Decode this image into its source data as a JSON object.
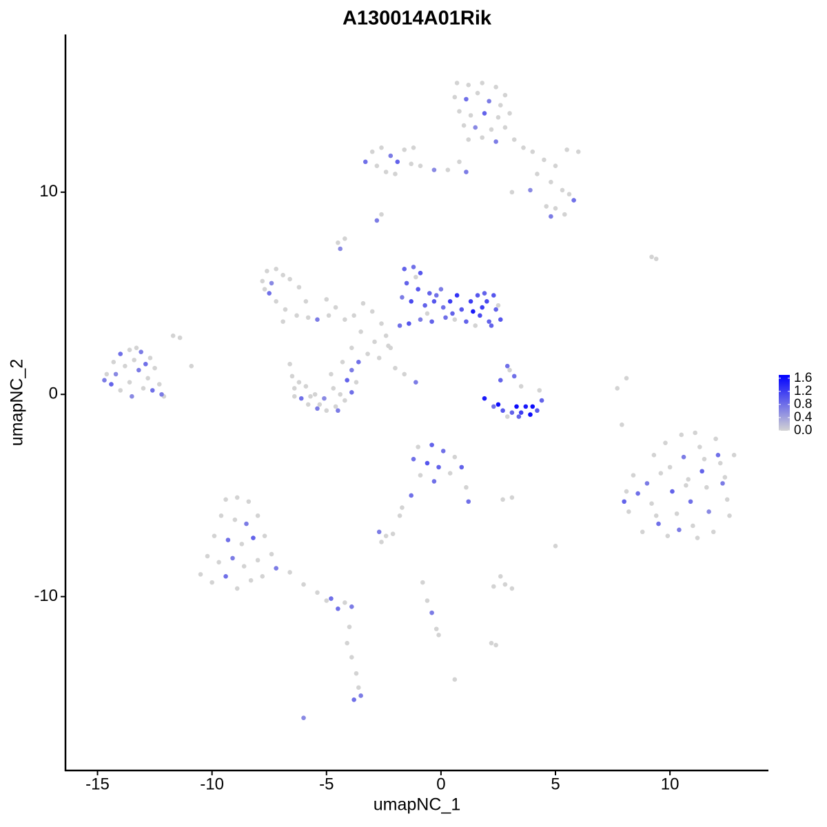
{
  "chart_data": {
    "type": "scatter",
    "title": "A130014A01Rik",
    "x_label": "umapNC_1",
    "y_label": "umapNC_2",
    "xlim": [
      -16.4,
      14.3
    ],
    "ylim": [
      -18.6,
      17.8
    ],
    "xticks": [
      -15,
      -10,
      -5,
      0,
      5,
      10
    ],
    "yticks": [
      -10,
      0,
      10
    ],
    "color_scale": {
      "low": "#d3d3d3",
      "high": "#0000ff",
      "lim": [
        0,
        1.7
      ],
      "ticks": [
        {
          "value": 0,
          "label": "0.0"
        },
        {
          "value": 0.4,
          "label": "0.4"
        },
        {
          "value": 0.8,
          "label": "0.8"
        },
        {
          "value": 1.2,
          "label": "1.2"
        },
        {
          "value": 1.6,
          "label": "1.6"
        }
      ]
    },
    "x": [
      0.7,
      1.2,
      1.8,
      2.4,
      2.8,
      0.6,
      1.1,
      1.6,
      2.1,
      2.6,
      0.8,
      1.3,
      1.9,
      2.5,
      3.0,
      1.0,
      1.5,
      2.2,
      2.8,
      1.2,
      1.8,
      2.4,
      3.2,
      3.6,
      4.0,
      4.5,
      5.0,
      5.5,
      4.2,
      3.9,
      4.8,
      5.3,
      5.8,
      5.6,
      4.6,
      5.0,
      4.8,
      5.4,
      3.1,
      6.0,
      -3.3,
      -3.0,
      -2.6,
      -2.2,
      -2.8,
      -2.4,
      -1.9,
      -1.6,
      -1.3,
      -0.9,
      -0.3,
      0.3,
      0.8,
      1.1,
      -2.0,
      -1.2,
      -2.8,
      -2.6,
      -4.5,
      -4.2,
      -4.4,
      -14.6,
      -14.3,
      -14.0,
      -13.6,
      -13.1,
      -12.7,
      -14.4,
      -14.0,
      -13.6,
      -13.2,
      -12.8,
      -12.5,
      -13.8,
      -13.4,
      -14.2,
      -13.0,
      -12.6,
      -12.3,
      -12.1,
      -13.5,
      -14.7,
      -13.3,
      -12.2,
      -11.4,
      -10.9,
      -12.9,
      -7.8,
      -7.6,
      -7.2,
      -6.9,
      -7.5,
      -7.2,
      -6.8,
      -6.3,
      -5.8,
      -5.4,
      -7.7,
      -6.6,
      -6.2,
      -5.9,
      -6.9,
      -4.9,
      -4.6,
      -4.2,
      -7.4,
      -5.0,
      -3.8,
      -3.4,
      -3.0,
      -2.6,
      -2.9,
      -2.4,
      -2.2,
      -3.5,
      -3.9,
      -2.7,
      -2.0,
      -1.6,
      -1.1,
      -3.2,
      -2.3,
      -6.5,
      -6.4,
      -6.1,
      -5.8,
      -5.4,
      -5.0,
      -4.6,
      -4.2,
      -3.9,
      -3.7,
      -3.9,
      -4.3,
      -6.6,
      -5.9,
      -5.5,
      -5.1,
      -4.7,
      -4.4,
      -6.2,
      -5.3,
      -4.1,
      -3.6,
      -4.8,
      -5.7,
      -4.5,
      -6.4,
      -1.6,
      -1.2,
      -0.9,
      -1.5,
      -1.0,
      -0.5,
      -1.7,
      -1.3,
      -0.7,
      -0.3,
      0.1,
      0.5,
      0.9,
      1.3,
      1.6,
      2.0,
      2.4,
      2.6,
      2.1,
      1.7,
      1.4,
      1.1,
      0.6,
      0.2,
      -0.4,
      -0.9,
      -1.4,
      -1.8,
      -0.6,
      0.4,
      1.9,
      2.3,
      2.5,
      0.0,
      -1.1,
      -0.2,
      1.5,
      2.2,
      0.7,
      1.8,
      1.9,
      2.3,
      2.7,
      3.1,
      3.5,
      3.9,
      4.2,
      4.4,
      4.3,
      2.5,
      3.3,
      3.7,
      4.0,
      2.9,
      3.4,
      2.6,
      3.0,
      3.2,
      3.5,
      2.9,
      8.1,
      8.4,
      8.2,
      8.8,
      9.3,
      9.0,
      9.2,
      9.5,
      9.9,
      9.8,
      10.0,
      10.1,
      10.3,
      10.5,
      10.6,
      10.8,
      10.9,
      11.0,
      11.2,
      11.3,
      11.4,
      11.6,
      11.7,
      11.9,
      12.0,
      12.2,
      12.3,
      12.5,
      12.6,
      12.8,
      8.6,
      9.6,
      10.4,
      11.1,
      12.1,
      9.4,
      10.7,
      11.5,
      12.4,
      8.0,
      -1.0,
      -0.4,
      0.1,
      0.6,
      0.9,
      -1.2,
      -0.6,
      -0.1,
      0.4,
      -0.9,
      -0.3,
      1.1,
      1.2,
      -1.3,
      -1.7,
      -1.8,
      -9.4,
      -8.9,
      -8.4,
      -9.6,
      -9.0,
      -8.5,
      -8.0,
      -9.9,
      -9.3,
      -8.7,
      -8.2,
      -7.7,
      -10.2,
      -9.7,
      -9.1,
      -8.6,
      -8.0,
      -7.4,
      -10.5,
      -10.0,
      -9.4,
      -8.9,
      -8.3,
      -7.8,
      -7.2,
      -6.6,
      -6.0,
      -5.4,
      -4.8,
      -4.2,
      -3.9,
      -4.0,
      -4.1,
      -3.9,
      -3.7,
      -3.6,
      -3.8,
      -3.5,
      -4.5,
      -5.0,
      -2.7,
      -2.4,
      -2.1,
      -2.6,
      2.3,
      2.8,
      3.1,
      2.6,
      -0.8,
      -0.6,
      -0.4,
      -0.2,
      -0.1,
      2.4,
      2.2,
      -6.0,
      0.6,
      9.4,
      9.2,
      7.7,
      8.1,
      7.9,
      5.0,
      3.1,
      2.7,
      -11.7
    ],
    "values": [
      15.4,
      15.3,
      15.4,
      15.2,
      14.8,
      14.7,
      14.6,
      14.9,
      14.5,
      14.3,
      14.0,
      13.8,
      13.9,
      13.7,
      13.9,
      13.3,
      13.2,
      13.1,
      13.2,
      12.6,
      12.7,
      12.5,
      12.6,
      12.2,
      12.0,
      11.6,
      11.3,
      12.1,
      10.9,
      10.1,
      10.5,
      10.1,
      9.6,
      9.9,
      9.3,
      9.2,
      8.8,
      8.9,
      10.0,
      12.0,
      11.5,
      12.0,
      12.2,
      11.8,
      11.3,
      11.0,
      11.5,
      12.1,
      11.4,
      11.3,
      11.1,
      11.1,
      11.5,
      11.0,
      10.9,
      12.2,
      8.6,
      8.9,
      7.5,
      7.7,
      7.2,
      1.0,
      1.6,
      2.0,
      2.2,
      2.1,
      1.8,
      0.5,
      0.2,
      0.6,
      1.2,
      0.8,
      1.3,
      1.4,
      1.7,
      1.0,
      0.3,
      0.2,
      0.5,
      -0.1,
      -0.1,
      0.7,
      2.3,
      0.0,
      2.8,
      1.4,
      1.5,
      5.6,
      6.1,
      6.2,
      5.9,
      5.0,
      4.6,
      4.2,
      3.9,
      3.8,
      3.7,
      5.2,
      5.7,
      5.3,
      4.6,
      3.6,
      3.9,
      4.3,
      3.7,
      5.5,
      4.7,
      3.9,
      4.5,
      4.1,
      3.5,
      2.6,
      2.9,
      2.3,
      3.1,
      2.3,
      1.8,
      1.3,
      1.0,
      0.6,
      2.0,
      2.4,
      0.9,
      0.3,
      -0.2,
      -0.5,
      -0.7,
      -0.8,
      -0.6,
      -0.3,
      0.1,
      0.6,
      1.2,
      1.6,
      1.5,
      0.4,
      0.0,
      -0.2,
      0.3,
      0.0,
      0.6,
      -0.5,
      0.7,
      1.6,
      1.0,
      -0.1,
      -0.8,
      -0.1,
      6.2,
      6.3,
      6.0,
      5.5,
      5.2,
      5.0,
      4.8,
      4.6,
      4.4,
      4.6,
      4.3,
      4.0,
      4.2,
      4.6,
      4.9,
      4.6,
      4.2,
      3.7,
      3.6,
      3.9,
      4.1,
      3.6,
      3.7,
      3.8,
      3.6,
      3.7,
      3.5,
      3.4,
      4.0,
      4.6,
      5.0,
      4.9,
      4.4,
      5.2,
      5.8,
      4.9,
      3.4,
      3.4,
      4.9,
      4.3,
      -0.2,
      -0.6,
      -0.8,
      -0.9,
      -0.9,
      -1.0,
      -0.8,
      -0.3,
      0.2,
      -0.5,
      -0.6,
      -0.6,
      -0.6,
      -1.1,
      -1.1,
      0.7,
      1.2,
      0.9,
      0.4,
      1.4,
      -4.8,
      -4.0,
      -5.8,
      -6.8,
      -3.0,
      -4.4,
      -5.4,
      -6.4,
      -7.0,
      -2.4,
      -3.6,
      -4.8,
      -5.9,
      -2.0,
      -3.1,
      -4.2,
      -5.3,
      -6.5,
      -7.1,
      -2.6,
      -3.8,
      -4.6,
      -5.8,
      -6.8,
      -2.2,
      -3.4,
      -4.4,
      -5.2,
      -6.0,
      -3.0,
      -4.9,
      -3.9,
      -6.7,
      -1.9,
      -3.0,
      -6.0,
      -4.5,
      -3.2,
      -4.1,
      -5.3,
      -2.6,
      -2.5,
      -2.8,
      -3.1,
      -3.6,
      -3.2,
      -3.4,
      -3.6,
      -3.9,
      -4.0,
      -4.3,
      -4.6,
      -5.3,
      -5.0,
      -5.6,
      -6.0,
      -5.2,
      -5.1,
      -5.3,
      -6.0,
      -6.2,
      -6.4,
      -6.0,
      -7.0,
      -7.2,
      -7.4,
      -7.1,
      -7.0,
      -8.0,
      -8.3,
      -8.1,
      -8.5,
      -8.2,
      -7.9,
      -8.9,
      -9.3,
      -9.0,
      -9.6,
      -9.2,
      -9.0,
      -8.6,
      -8.8,
      -9.4,
      -9.8,
      -10.1,
      -10.3,
      -10.5,
      -11.5,
      -12.3,
      -13.0,
      -13.8,
      -14.5,
      -15.1,
      -14.9,
      -10.6,
      -10.2,
      -6.8,
      -7.0,
      -6.9,
      -7.3,
      -9.5,
      -9.4,
      -9.6,
      -9.0,
      -9.3,
      -10.2,
      -10.8,
      -11.6,
      -11.9,
      -12.4,
      -12.3,
      -16.0,
      -14.1,
      6.7,
      6.8,
      0.3,
      0.8,
      -1.5,
      -7.5,
      -5.1,
      -5.2,
      2.9
    ],
    "expression": [
      0,
      0,
      0,
      0,
      0,
      0,
      0.8,
      0,
      0.7,
      0,
      0,
      0,
      0.9,
      0,
      0,
      0,
      0.6,
      0,
      0,
      0,
      0,
      0.7,
      0,
      0,
      0,
      0,
      0,
      0,
      0,
      0.6,
      0,
      0,
      0.8,
      0,
      0,
      0,
      0.7,
      0,
      0,
      0,
      0.8,
      0,
      0,
      0.7,
      0,
      0,
      0.9,
      0,
      0,
      0,
      0.6,
      0,
      0,
      0.7,
      0,
      0,
      0.7,
      0,
      0,
      0,
      0.6,
      0,
      0,
      0.8,
      0,
      0.7,
      0,
      0.9,
      0,
      0,
      0.7,
      0,
      0,
      0,
      0,
      0.6,
      0,
      0.8,
      0,
      0,
      0.6,
      0.7,
      0,
      0.7,
      0,
      0,
      0.8,
      0,
      0,
      0,
      0,
      0.8,
      0,
      0,
      0,
      0,
      0.7,
      0,
      0,
      0,
      0,
      0,
      0,
      0,
      0,
      0.6,
      0,
      0,
      0,
      0,
      0,
      0,
      0,
      0,
      0,
      0,
      0,
      0,
      0,
      0.7,
      0,
      0,
      0,
      0,
      0.8,
      0,
      0.7,
      0,
      0,
      0,
      0.8,
      0,
      0.7,
      0,
      0,
      0,
      0,
      0.6,
      0,
      0,
      0,
      0,
      0.9,
      0.8,
      0,
      0,
      0.7,
      0,
      0.9,
      0.8,
      1.0,
      0.9,
      1.0,
      0.9,
      0.7,
      1.1,
      0.9,
      1.0,
      0.8,
      0.9,
      1.0,
      1.2,
      1.0,
      1.1,
      0.9,
      1.0,
      0.9,
      1.1,
      1.5,
      0.9,
      0,
      0.8,
      0.9,
      0.7,
      1.0,
      0.8,
      0,
      1.2,
      0.9,
      1.0,
      0,
      0.7,
      0,
      0.8,
      0,
      0.9,
      1.3,
      1.2,
      1.5,
      0.8,
      1.0,
      0.9,
      1.2,
      1.6,
      1.0,
      0.9,
      0,
      1.6,
      1.6,
      1.5,
      1.6,
      0,
      0.9,
      0.9,
      0,
      0.8,
      0,
      0.8,
      0,
      0,
      0,
      0,
      0,
      0.7,
      0,
      0.8,
      0,
      0,
      0,
      0.9,
      0,
      0,
      0.7,
      0,
      0.8,
      0,
      0,
      0,
      0.9,
      0,
      0.6,
      0,
      0,
      0,
      0.7,
      0,
      0,
      0,
      0.8,
      0,
      0.7,
      0,
      0.8,
      0,
      0,
      0,
      0,
      0.9,
      0,
      0.9,
      0.8,
      0,
      0.9,
      0.8,
      1.0,
      0.9,
      0,
      0,
      0.8,
      0,
      0.8,
      0.8,
      0,
      0,
      0,
      0,
      0,
      0,
      0,
      0.7,
      0,
      0,
      0.8,
      0,
      0.9,
      0,
      0,
      0,
      0.7,
      0,
      0,
      0,
      0,
      0,
      0.8,
      0,
      0,
      0,
      0.7,
      0,
      0,
      0,
      0.8,
      0,
      0.7,
      0,
      0,
      0,
      0,
      0,
      0.8,
      0.7,
      0.8,
      0,
      0.7,
      0,
      0,
      0,
      0,
      0,
      0,
      0,
      0,
      0,
      0.7,
      0,
      0,
      0,
      0,
      0.6,
      0,
      0,
      0,
      0,
      0,
      0,
      0,
      0,
      0,
      0
    ]
  }
}
